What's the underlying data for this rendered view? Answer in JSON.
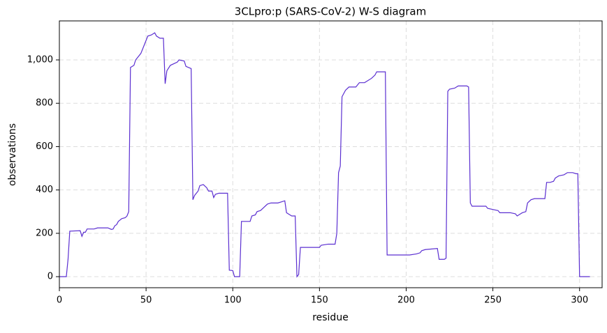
{
  "chart_data": {
    "type": "line",
    "title": "3CLpro:p (SARS-CoV-2) W-S diagram",
    "x_label": "residue",
    "y_label": "observations",
    "xlim": [
      0,
      313
    ],
    "ylim": [
      -51,
      1180
    ],
    "xticks": [
      0,
      50,
      100,
      150,
      200,
      250,
      300
    ],
    "yticks": [
      0,
      200,
      400,
      600,
      800,
      {
        "value": 1000,
        "label": "1,000"
      }
    ],
    "grid": true,
    "series": [
      {
        "color": "#5b2fd1",
        "x": [
          0,
          4,
          5,
          6,
          12,
          13,
          14,
          15,
          16,
          20,
          22,
          28,
          30,
          31,
          32,
          33,
          34,
          36,
          38,
          39,
          40,
          41,
          43,
          44,
          47,
          49,
          51,
          53,
          55,
          56,
          58,
          60,
          61,
          62,
          64,
          68,
          69,
          72,
          73,
          76,
          77,
          78,
          80,
          81,
          83,
          85,
          86,
          88,
          89,
          90,
          92,
          97,
          98,
          100,
          101,
          104,
          105,
          110,
          111,
          113,
          114,
          116,
          118,
          120,
          122,
          126,
          128,
          130,
          131,
          133,
          134,
          136,
          137,
          138,
          139,
          150,
          151,
          155,
          159,
          160,
          161,
          162,
          163,
          165,
          167,
          171,
          173,
          176,
          180,
          182,
          183,
          188,
          189,
          200,
          202,
          206,
          208,
          209,
          211,
          218,
          219,
          222,
          223,
          224,
          225,
          228,
          230,
          235,
          236,
          237,
          238,
          246,
          247,
          250,
          253,
          254,
          260,
          263,
          264,
          266,
          267,
          269,
          270,
          272,
          274,
          280,
          281,
          283,
          285,
          286,
          288,
          291,
          293,
          296,
          298,
          299,
          300,
          306
        ],
        "values": [
          0,
          0,
          80,
          210,
          212,
          186,
          205,
          205,
          220,
          220,
          225,
          225,
          218,
          220,
          235,
          240,
          255,
          268,
          272,
          280,
          300,
          965,
          975,
          1000,
          1030,
          1070,
          1110,
          1115,
          1125,
          1110,
          1100,
          1100,
          890,
          950,
          975,
          990,
          1000,
          995,
          970,
          960,
          355,
          375,
          395,
          420,
          425,
          410,
          395,
          395,
          365,
          380,
          385,
          385,
          30,
          28,
          0,
          0,
          255,
          255,
          280,
          285,
          300,
          305,
          320,
          335,
          340,
          340,
          345,
          350,
          295,
          285,
          280,
          280,
          0,
          10,
          135,
          135,
          145,
          150,
          150,
          200,
          480,
          510,
          830,
          860,
          875,
          875,
          895,
          895,
          915,
          930,
          945,
          945,
          100,
          100,
          100,
          105,
          110,
          120,
          125,
          130,
          80,
          80,
          85,
          855,
          865,
          870,
          880,
          880,
          875,
          340,
          325,
          325,
          315,
          310,
          305,
          295,
          295,
          290,
          280,
          290,
          295,
          300,
          340,
          355,
          360,
          360,
          435,
          435,
          440,
          455,
          465,
          470,
          480,
          480,
          475,
          475,
          0,
          0
        ]
      }
    ]
  }
}
